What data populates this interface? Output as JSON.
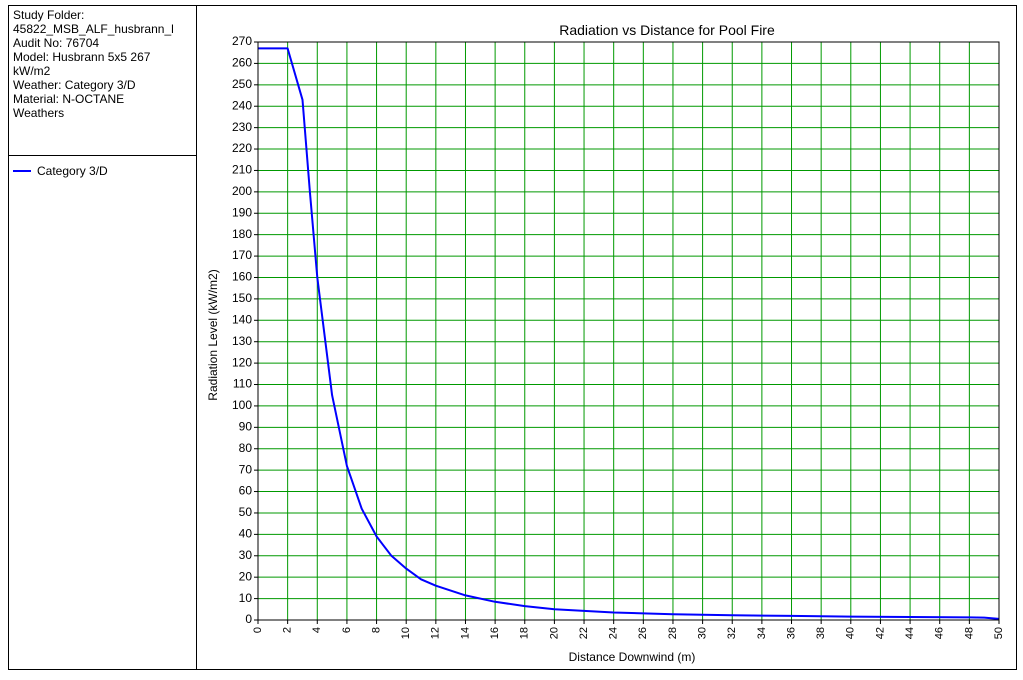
{
  "info_panel": {
    "lines": [
      "Study Folder:",
      "45822_MSB_ALF_husbrann_l",
      "Audit No: 76704",
      "Model: Husbrann 5x5 267",
      "kW/m2",
      "Weather: Category 3/D",
      "Material: N-OCTANE",
      "Weathers"
    ]
  },
  "legend": {
    "items": [
      {
        "label": "Category 3/D",
        "color": "#0000ff"
      }
    ]
  },
  "colors": {
    "grid": "#009900",
    "series": "#0000ff",
    "axis": "#000000"
  },
  "chart_data": {
    "type": "line",
    "title": "Radiation vs Distance for Pool Fire",
    "xlabel": "Distance Downwind (m)",
    "ylabel": "Radiation Level (kW/m2)",
    "xlim": [
      0,
      50
    ],
    "ylim": [
      0,
      270
    ],
    "x_ticks": [
      0,
      2,
      4,
      6,
      8,
      10,
      12,
      14,
      16,
      18,
      20,
      22,
      24,
      26,
      28,
      30,
      32,
      34,
      36,
      38,
      40,
      42,
      44,
      46,
      48,
      50
    ],
    "y_ticks": [
      0,
      10,
      20,
      30,
      40,
      50,
      60,
      70,
      80,
      90,
      100,
      110,
      120,
      130,
      140,
      150,
      160,
      170,
      180,
      190,
      200,
      210,
      220,
      230,
      240,
      250,
      260,
      270
    ],
    "grid": true,
    "series": [
      {
        "name": "Category 3/D",
        "x": [
          0,
          2,
          3,
          3.5,
          4,
          5,
          6,
          7,
          8,
          9,
          10,
          11,
          12,
          14,
          16,
          18,
          20,
          24,
          28,
          32,
          36,
          40,
          44,
          48,
          49,
          50
        ],
        "y": [
          267,
          267,
          243,
          200,
          160,
          105,
          72,
          52,
          39,
          30,
          24,
          19,
          16,
          11.5,
          8.5,
          6.5,
          5,
          3.5,
          2.7,
          2.2,
          1.9,
          1.6,
          1.4,
          1.2,
          1.1,
          0.5
        ]
      }
    ]
  }
}
